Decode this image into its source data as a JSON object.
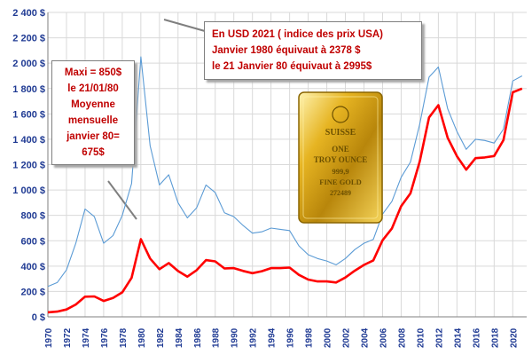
{
  "chart_data": {
    "type": "line",
    "ylim": [
      0,
      2400
    ],
    "y_ticks": [
      "0 $",
      "200 $",
      "400 $",
      "600 $",
      "800 $",
      "1 000 $",
      "1 200 $",
      "1 400 $",
      "1 600 $",
      "1 800 $",
      "2 000 $",
      "2 200 $",
      "2 400 $"
    ],
    "xlim": [
      1970,
      2021.5
    ],
    "x_ticks": [
      "1970",
      "1972",
      "1974",
      "1976",
      "1978",
      "1980",
      "1982",
      "1984",
      "1986",
      "1988",
      "1990",
      "1992",
      "1994",
      "1996",
      "1998",
      "2000",
      "2002",
      "2004",
      "2006",
      "2008",
      "2010",
      "2012",
      "2014",
      "2016",
      "2018",
      "2020"
    ],
    "grid": true,
    "x": [
      1970,
      1971,
      1972,
      1973,
      1974,
      1975,
      1976,
      1977,
      1978,
      1979,
      1980,
      1981,
      1982,
      1983,
      1984,
      1985,
      1986,
      1987,
      1988,
      1989,
      1990,
      1991,
      1992,
      1993,
      1994,
      1995,
      1996,
      1997,
      1998,
      1999,
      2000,
      2001,
      2002,
      2003,
      2004,
      2005,
      2006,
      2007,
      2008,
      2009,
      2010,
      2011,
      2012,
      2013,
      2014,
      2015,
      2016,
      2017,
      2018,
      2019,
      2020,
      2021
    ],
    "series": [
      {
        "color": "#ff0000",
        "values": [
          36,
          41,
          58,
          97,
          159,
          161,
          125,
          148,
          193,
          307,
          612,
          460,
          376,
          424,
          361,
          317,
          368,
          447,
          437,
          381,
          384,
          362,
          344,
          360,
          384,
          384,
          388,
          331,
          294,
          279,
          279,
          271,
          310,
          363,
          409,
          445,
          604,
          697,
          872,
          973,
          1225,
          1572,
          1669,
          1411,
          1266,
          1160,
          1251,
          1257,
          1268,
          1393,
          1770,
          1800
        ]
      },
      {
        "color": "#5b9bd5",
        "values": [
          240,
          270,
          370,
          580,
          850,
          790,
          580,
          640,
          800,
          1050,
          2050,
          1350,
          1040,
          1120,
          900,
          780,
          860,
          1040,
          980,
          820,
          790,
          720,
          660,
          670,
          700,
          690,
          680,
          560,
          490,
          460,
          440,
          410,
          460,
          530,
          580,
          610,
          810,
          910,
          1100,
          1220,
          1520,
          1890,
          1970,
          1640,
          1460,
          1320,
          1400,
          1390,
          1370,
          1480,
          1860,
          1900
        ]
      }
    ],
    "annotations": [
      {
        "lines": [
          "Maxi = 850$",
          "le 21/01/80",
          "Moyenne",
          "mensuelle",
          "janvier 80=",
          "675$"
        ]
      },
      {
        "lines": [
          "En USD 2021 ( indice des prix USA)",
          "Janvier 1980 équivaut à 2378 $",
          "le 21 Janvier 80 équivaut à 2995$"
        ]
      }
    ]
  },
  "gold_bar": {
    "lines": [
      "SUISSE",
      "ONE",
      "TROY OUNCE",
      "999,9",
      "FINE GOLD",
      "272489"
    ]
  }
}
